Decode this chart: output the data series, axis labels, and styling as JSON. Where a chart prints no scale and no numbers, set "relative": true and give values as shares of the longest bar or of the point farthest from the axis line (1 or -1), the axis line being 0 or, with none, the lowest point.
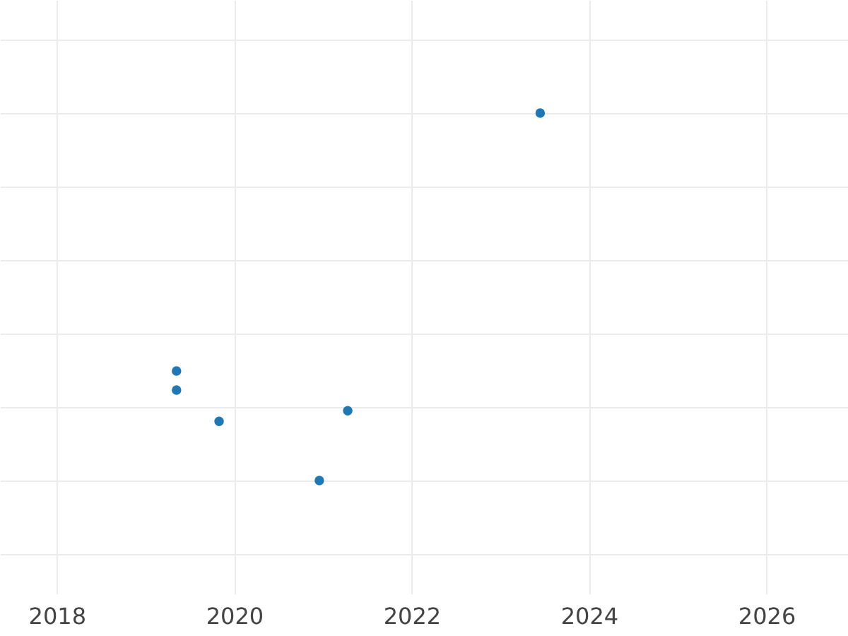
{
  "chart_data": {
    "type": "scatter",
    "relative": true,
    "x": [
      2019.35,
      2019.35,
      2019.83,
      2020.96,
      2021.28,
      2023.45
    ],
    "values": [
      0.298,
      0.246,
      0.161,
      0,
      0.19,
      1
    ],
    "color": "#1f77b4",
    "marker": "circle",
    "grid": true,
    "xlim": [
      2017.36,
      2026.92
    ],
    "xticks": [
      2018,
      2020,
      2022,
      2024,
      2026
    ]
  }
}
